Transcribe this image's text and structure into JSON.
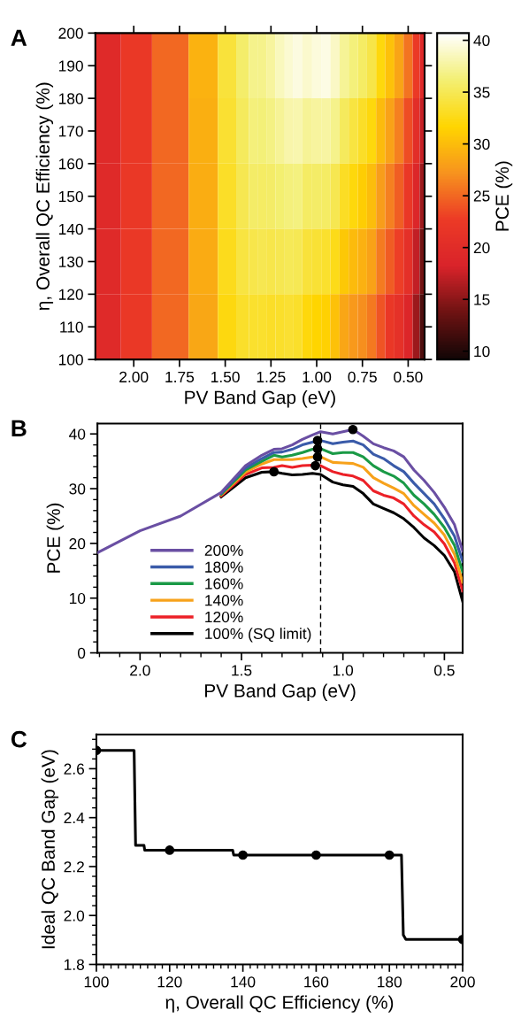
{
  "chart_data": [
    {
      "type": "heatmap",
      "annotations": [
        "A"
      ],
      "xlabel": "PV Band Gap (eV)",
      "ylabel": "η, Overall QC Efficiency (%)",
      "clabel": "PCE (%)",
      "x": [
        2.14,
        2.0,
        1.8,
        1.6,
        1.48,
        1.4,
        1.34,
        1.3,
        1.25,
        1.2,
        1.15,
        1.11,
        1.05,
        1.0,
        0.95,
        0.9,
        0.85,
        0.8,
        0.75,
        0.7,
        0.65,
        0.6,
        0.55,
        0.5,
        0.45,
        0.424
      ],
      "y": [
        190,
        170,
        150,
        130,
        110
      ],
      "cells": [
        [
          19.6,
          22.3,
          25.0,
          29.3,
          34.0,
          35.8,
          36.9,
          37.0,
          37.6,
          38.5,
          39.2,
          39.6,
          39.1,
          39.5,
          39.8,
          38.8,
          37.3,
          36.5,
          35.6,
          34.5,
          32.2,
          30.3,
          28.3,
          25.6,
          22.4,
          19.3
        ],
        [
          19.6,
          22.3,
          25.0,
          29.1,
          33.6,
          35.3,
          36.4,
          36.3,
          36.7,
          37.3,
          37.9,
          38.1,
          37.3,
          37.6,
          37.7,
          36.9,
          35.3,
          34.3,
          33.3,
          32.1,
          29.9,
          28.2,
          26.3,
          23.7,
          20.5,
          17.4
        ],
        [
          19.6,
          22.3,
          25.0,
          29.0,
          33.2,
          34.8,
          35.7,
          35.6,
          35.7,
          36.1,
          36.5,
          36.6,
          35.6,
          35.7,
          35.6,
          34.9,
          33.1,
          32.1,
          31.2,
          30.1,
          27.9,
          26.3,
          24.5,
          22.2,
          18.8,
          15.6
        ],
        [
          19.6,
          22.3,
          25.0,
          28.8,
          32.8,
          34.2,
          34.6,
          34.8,
          34.6,
          34.9,
          35.1,
          35.0,
          34.0,
          33.7,
          33.5,
          32.7,
          30.8,
          29.9,
          29.2,
          28.2,
          26.0,
          24.4,
          22.9,
          20.7,
          17.2,
          13.9
        ],
        [
          19.6,
          22.3,
          25.0,
          28.6,
          32.3,
          33.4,
          33.5,
          33.5,
          33.2,
          33.4,
          33.6,
          33.4,
          32.2,
          31.7,
          31.4,
          30.3,
          28.4,
          27.6,
          27.0,
          25.9,
          24.0,
          22.2,
          20.9,
          18.9,
          15.6,
          12.2
        ]
      ],
      "colors": [
        "#120606",
        "#6e1212",
        "#d9232a",
        "#ec3a26",
        "#f7931e",
        "#ffd500",
        "#f3ef72",
        "#ffffff"
      ],
      "clim": [
        9.2,
        40.7
      ],
      "cticks": [
        10,
        15,
        20,
        25,
        30,
        35,
        40
      ],
      "xlim": [
        2.21,
        0.41
      ],
      "xticks": [
        {
          "value": 2.0,
          "label": "2.00"
        },
        {
          "value": 1.75,
          "label": "1.75"
        },
        {
          "value": 1.5,
          "label": "1.50"
        },
        {
          "value": 1.25,
          "label": "1.25"
        },
        {
          "value": 1.0,
          "label": "1.00"
        },
        {
          "value": 0.75,
          "label": "0.75"
        },
        {
          "value": 0.5,
          "label": "0.50"
        }
      ],
      "ylim": [
        100,
        200
      ],
      "yticks": [
        100,
        110,
        120,
        130,
        140,
        150,
        160,
        170,
        180,
        190,
        200
      ]
    },
    {
      "type": "line",
      "annotations": [
        "B"
      ],
      "xlabel": "PV Band Gap (eV)",
      "ylabel": "PCE (%)",
      "legend": "bottom left",
      "x": [
        2.21,
        2.0,
        1.8,
        1.6,
        1.48,
        1.4,
        1.34,
        1.3,
        1.25,
        1.2,
        1.15,
        1.11,
        1.05,
        1.0,
        0.95,
        0.9,
        0.85,
        0.8,
        0.75,
        0.7,
        0.65,
        0.6,
        0.55,
        0.5,
        0.45,
        0.41
      ],
      "series": [
        {
          "name": "200%",
          "color": "#6a4fa3",
          "values": [
            18.3,
            22.3,
            25.0,
            29.3,
            34.2,
            36.1,
            37.2,
            37.3,
            38.0,
            39.0,
            39.8,
            40.4,
            40.0,
            40.4,
            40.8,
            39.6,
            38.2,
            37.5,
            36.9,
            35.8,
            33.4,
            31.5,
            29.3,
            26.6,
            23.4,
            18.6
          ]
        },
        {
          "name": "180%",
          "color": "#3a5ba9",
          "values": [
            null,
            null,
            null,
            29.2,
            33.8,
            35.5,
            36.6,
            36.7,
            37.2,
            38.0,
            38.5,
            38.8,
            38.2,
            38.5,
            38.7,
            38.0,
            36.3,
            35.5,
            34.2,
            33.1,
            31.0,
            29.1,
            27.2,
            24.5,
            21.3,
            16.7
          ]
        },
        {
          "name": "160%",
          "color": "#1a9a46",
          "values": [
            null,
            null,
            null,
            29.0,
            33.4,
            35.0,
            36.1,
            35.8,
            36.1,
            36.6,
            37.2,
            37.3,
            36.4,
            36.6,
            36.6,
            35.8,
            34.2,
            33.1,
            32.3,
            31.0,
            28.8,
            27.2,
            25.3,
            22.9,
            19.6,
            14.8
          ]
        },
        {
          "name": "140%",
          "color": "#f7a21b",
          "values": [
            null,
            null,
            null,
            28.9,
            33.0,
            34.5,
            35.3,
            35.3,
            35.3,
            35.5,
            35.8,
            35.8,
            34.8,
            34.7,
            34.6,
            33.9,
            32.0,
            31.0,
            30.1,
            29.1,
            26.9,
            25.3,
            23.7,
            21.5,
            18.0,
            12.9
          ]
        },
        {
          "name": "120%",
          "color": "#ec2027",
          "values": [
            null,
            null,
            null,
            28.7,
            32.6,
            33.8,
            33.9,
            34.2,
            33.9,
            34.2,
            34.3,
            34.2,
            33.1,
            32.6,
            32.3,
            31.5,
            29.6,
            28.8,
            28.3,
            27.2,
            25.0,
            23.4,
            22.1,
            19.9,
            16.4,
            11.3
          ]
        },
        {
          "name": "100% (SQ limit)",
          "color": "#000000",
          "values": [
            null,
            null,
            null,
            28.5,
            32.0,
            33.0,
            33.1,
            32.8,
            32.5,
            32.6,
            32.8,
            32.6,
            31.2,
            30.7,
            30.4,
            29.1,
            27.2,
            26.4,
            25.6,
            24.5,
            22.9,
            21.0,
            19.6,
            17.8,
            14.8,
            9.4
          ]
        },
        {
          "type": "scatter",
          "marker": "circle",
          "color": "#000000",
          "x": [
            1.34,
            1.136,
            1.125,
            1.125,
            1.125,
            0.951
          ],
          "values": [
            33.1,
            34.2,
            35.8,
            37.3,
            38.8,
            40.8
          ]
        }
      ],
      "ref_lines": [
        {
          "axis": "x",
          "value": 1.11,
          "color": "#000000",
          "line_style": "dashed"
        }
      ],
      "xlim": [
        2.21,
        0.41
      ],
      "xticks": [
        {
          "value": 2.0,
          "label": "2.0"
        },
        1.5,
        {
          "value": 1.0,
          "label": "1.0"
        },
        0.5
      ],
      "ylim": [
        0,
        41.9
      ],
      "yticks": [
        0,
        10,
        20,
        30,
        40
      ]
    },
    {
      "type": "line",
      "annotations": [
        "C"
      ],
      "xlabel": "η, Overall QC Efficiency (%)",
      "ylabel": "Ideal QC Band Gap (eV)",
      "series": [
        {
          "color": "#000000",
          "x": [
            100,
            110.3,
            110.7,
            113.0,
            113.2,
            137.2,
            137.5,
            183.3,
            183.8,
            184.5,
            200
          ],
          "values": [
            2.675,
            2.675,
            2.287,
            2.287,
            2.267,
            2.267,
            2.247,
            2.247,
            1.92,
            1.902,
            1.902
          ]
        },
        {
          "type": "scatter",
          "marker": "circle",
          "color": "#000000",
          "x": [
            100,
            120,
            140,
            160,
            180,
            200
          ],
          "values": [
            2.675,
            2.267,
            2.247,
            2.247,
            2.247,
            1.902
          ]
        }
      ],
      "xlim": [
        100,
        200
      ],
      "xticks": [
        100,
        120,
        140,
        160,
        180,
        200
      ],
      "ylim": [
        1.8,
        2.74
      ],
      "yticks": [
        1.8,
        2.2,
        2.4,
        2.6,
        {
          "value": 2.0,
          "label": "2.0"
        }
      ]
    }
  ]
}
